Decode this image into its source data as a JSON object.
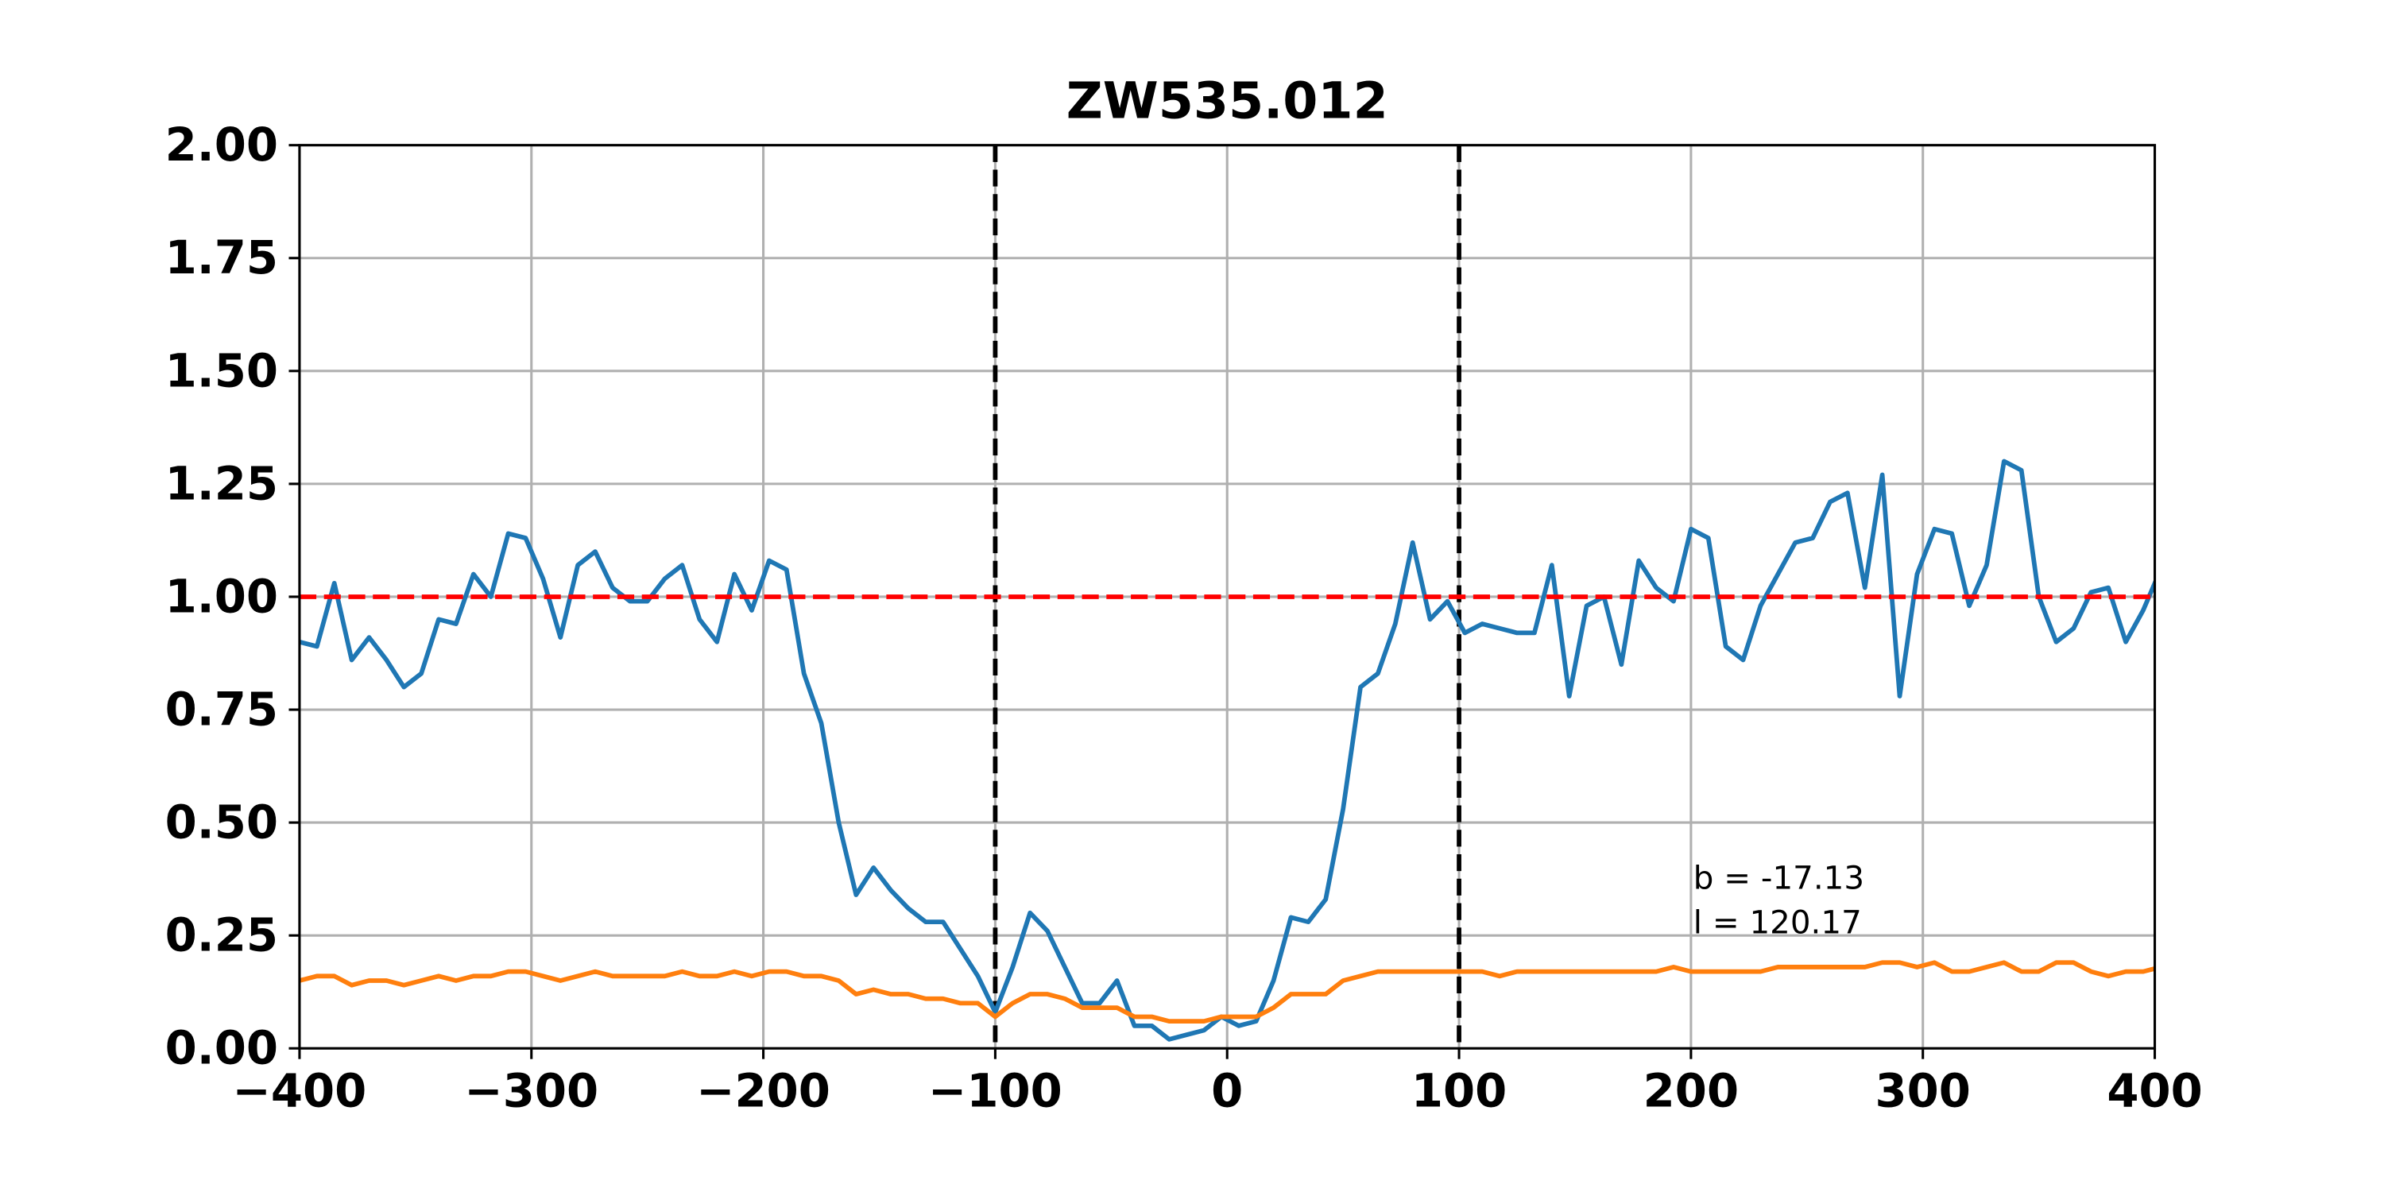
{
  "chart_data": {
    "type": "line",
    "title": "ZW535.012",
    "x": [
      -400,
      -392.5,
      -385,
      -377.5,
      -370,
      -362.5,
      -355,
      -347.5,
      -340,
      -332.5,
      -325,
      -317.5,
      -310,
      -302.5,
      -295,
      -287.5,
      -280,
      -272.5,
      -265,
      -257.5,
      -250,
      -242.5,
      -235,
      -227.5,
      -220,
      -212.5,
      -205,
      -197.5,
      -190,
      -182.5,
      -175,
      -167.5,
      -160,
      -152.5,
      -145,
      -137.5,
      -130,
      -122.5,
      -115,
      -107.5,
      -100,
      -92.5,
      -85,
      -77.5,
      -70,
      -62.5,
      -55,
      -47.5,
      -40,
      -32.5,
      -25,
      -17.5,
      -10,
      -2.5,
      5,
      12.5,
      20,
      27.5,
      35,
      42.5,
      50,
      57.5,
      65,
      72.5,
      80,
      87.5,
      95,
      102.5,
      110,
      117.5,
      125,
      132.5,
      140,
      147.5,
      155,
      162.5,
      170,
      177.5,
      185,
      192.5,
      200,
      207.5,
      215,
      222.5,
      230,
      237.5,
      245,
      252.5,
      260,
      267.5,
      275,
      282.5,
      290,
      297.5,
      305,
      312.5,
      320,
      327.5,
      335,
      342.5,
      350,
      357.5,
      365,
      372.5,
      380,
      387.5,
      395,
      402.5
    ],
    "series": [
      {
        "color": "#1f77b4",
        "values": [
          0.9,
          0.89,
          1.03,
          0.86,
          0.91,
          0.86,
          0.8,
          0.83,
          0.95,
          0.94,
          1.05,
          1.0,
          1.14,
          1.13,
          1.04,
          0.91,
          1.07,
          1.1,
          1.02,
          0.99,
          0.99,
          1.04,
          1.07,
          0.95,
          0.9,
          1.05,
          0.97,
          1.08,
          1.06,
          0.83,
          0.72,
          0.5,
          0.34,
          0.4,
          0.35,
          0.31,
          0.28,
          0.28,
          0.22,
          0.16,
          0.08,
          0.18,
          0.3,
          0.26,
          0.18,
          0.1,
          0.1,
          0.15,
          0.05,
          0.05,
          0.02,
          0.03,
          0.04,
          0.07,
          0.05,
          0.06,
          0.15,
          0.29,
          0.28,
          0.33,
          0.53,
          0.8,
          0.83,
          0.94,
          1.12,
          0.95,
          0.99,
          0.92,
          0.94,
          0.93,
          0.92,
          0.92,
          1.07,
          0.78,
          0.98,
          1.0,
          0.85,
          1.08,
          1.02,
          0.99,
          1.15,
          1.13,
          0.89,
          0.86,
          0.98,
          1.05,
          1.12,
          1.13,
          1.21,
          1.23,
          1.02,
          1.27,
          0.78,
          1.05,
          1.15,
          1.14,
          0.98,
          1.07,
          1.3,
          1.28,
          1.0,
          0.9,
          0.93,
          1.01,
          1.02,
          0.9,
          0.97,
          1.06
        ]
      },
      {
        "color": "#ff7f0e",
        "values": [
          0.15,
          0.16,
          0.16,
          0.14,
          0.15,
          0.15,
          0.14,
          0.15,
          0.16,
          0.15,
          0.16,
          0.16,
          0.17,
          0.17,
          0.16,
          0.15,
          0.16,
          0.17,
          0.16,
          0.16,
          0.16,
          0.16,
          0.17,
          0.16,
          0.16,
          0.17,
          0.16,
          0.17,
          0.17,
          0.16,
          0.16,
          0.15,
          0.12,
          0.13,
          0.12,
          0.12,
          0.11,
          0.11,
          0.1,
          0.1,
          0.07,
          0.1,
          0.12,
          0.12,
          0.11,
          0.09,
          0.09,
          0.09,
          0.07,
          0.07,
          0.06,
          0.06,
          0.06,
          0.07,
          0.07,
          0.07,
          0.09,
          0.12,
          0.12,
          0.12,
          0.15,
          0.16,
          0.17,
          0.17,
          0.17,
          0.17,
          0.17,
          0.17,
          0.17,
          0.16,
          0.17,
          0.17,
          0.17,
          0.17,
          0.17,
          0.17,
          0.17,
          0.17,
          0.17,
          0.18,
          0.17,
          0.17,
          0.17,
          0.17,
          0.17,
          0.18,
          0.18,
          0.18,
          0.18,
          0.18,
          0.18,
          0.19,
          0.19,
          0.18,
          0.19,
          0.17,
          0.17,
          0.18,
          0.19,
          0.17,
          0.17,
          0.19,
          0.19,
          0.17,
          0.16,
          0.17,
          0.17,
          0.18
        ]
      }
    ],
    "hline": {
      "value": 1,
      "color": "#ff0000"
    },
    "vlines": {
      "values": [
        -100,
        100
      ],
      "color": "#000000"
    },
    "annotations": [
      "b = -17.13",
      "l = 120.17"
    ],
    "xlim": [
      -400,
      400
    ],
    "ylim": [
      0,
      2
    ],
    "xticks": [
      {
        "value": -400,
        "label": "−400"
      },
      {
        "value": -300,
        "label": "−300"
      },
      {
        "value": -200,
        "label": "−200"
      },
      {
        "value": -100,
        "label": "−100"
      },
      0,
      100,
      200,
      300,
      400
    ],
    "yticks": [
      {
        "value": 0,
        "label": "0.00"
      },
      {
        "value": 0.25,
        "label": "0.25"
      },
      {
        "value": 0.5,
        "label": "0.50"
      },
      {
        "value": 0.75,
        "label": "0.75"
      },
      {
        "value": 1,
        "label": "1.00"
      },
      {
        "value": 1.25,
        "label": "1.25"
      },
      {
        "value": 1.5,
        "label": "1.50"
      },
      {
        "value": 1.75,
        "label": "1.75"
      },
      {
        "value": 2,
        "label": "2.00"
      }
    ],
    "grid": true
  }
}
